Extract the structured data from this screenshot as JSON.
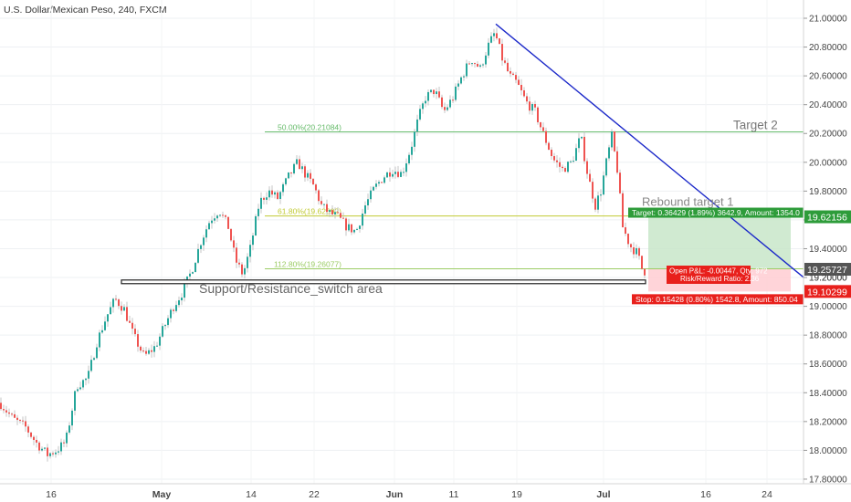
{
  "title": "U.S. Dollar/Mexican Peso, 240, FXCM",
  "colors": {
    "up": "#26a69a",
    "down": "#ef5350",
    "wick": "#9e9e9e",
    "trendline": "#1c29c9",
    "fib50": "#66bb6a",
    "fib618": "#c0ca33",
    "fib1128": "#9ccc65",
    "target_zone": "#c8e6c9",
    "stop_zone": "#ffcdd2",
    "target_label": "#2e9c3a",
    "stop_label": "#e8201c",
    "support_line": "#222222"
  },
  "chart_data": {
    "type": "candlestick",
    "x_ticks": [
      "16",
      "May",
      "14",
      "22",
      "Jun",
      "11",
      "19",
      "Jul",
      "16",
      "24"
    ],
    "y_ticks": [
      "17.80000",
      "18.00000",
      "18.20000",
      "18.40000",
      "18.60000",
      "18.80000",
      "19.00000",
      "19.20000",
      "19.40000",
      "19.60000",
      "19.80000",
      "20.00000",
      "20.20000",
      "20.40000",
      "20.60000",
      "20.80000",
      "21.00000"
    ],
    "ylim": [
      17.72,
      21.06
    ],
    "close_path": [
      [
        0,
        18.33
      ],
      [
        14,
        18.22
      ],
      [
        28,
        18.16
      ],
      [
        40,
        18.05
      ],
      [
        52,
        17.97
      ],
      [
        62,
        18.0
      ],
      [
        72,
        18.06
      ],
      [
        84,
        18.45
      ],
      [
        96,
        18.5
      ],
      [
        106,
        18.75
      ],
      [
        116,
        18.92
      ],
      [
        126,
        19.05
      ],
      [
        136,
        18.98
      ],
      [
        146,
        18.8
      ],
      [
        158,
        18.65
      ],
      [
        170,
        18.72
      ],
      [
        180,
        18.86
      ],
      [
        190,
        19.0
      ],
      [
        200,
        19.1
      ],
      [
        210,
        19.25
      ],
      [
        220,
        19.45
      ],
      [
        230,
        19.6
      ],
      [
        240,
        19.67
      ],
      [
        250,
        19.55
      ],
      [
        258,
        19.32
      ],
      [
        266,
        19.22
      ],
      [
        274,
        19.4
      ],
      [
        284,
        19.72
      ],
      [
        294,
        19.8
      ],
      [
        304,
        19.75
      ],
      [
        316,
        19.9
      ],
      [
        326,
        20.0
      ],
      [
        334,
        19.92
      ],
      [
        344,
        19.83
      ],
      [
        352,
        19.7
      ],
      [
        360,
        19.65
      ],
      [
        370,
        19.62
      ],
      [
        380,
        19.55
      ],
      [
        390,
        19.52
      ],
      [
        400,
        19.7
      ],
      [
        410,
        19.82
      ],
      [
        420,
        19.9
      ],
      [
        430,
        19.95
      ],
      [
        440,
        19.92
      ],
      [
        450,
        20.1
      ],
      [
        458,
        20.3
      ],
      [
        466,
        20.45
      ],
      [
        476,
        20.5
      ],
      [
        486,
        20.35
      ],
      [
        496,
        20.45
      ],
      [
        506,
        20.6
      ],
      [
        516,
        20.72
      ],
      [
        526,
        20.65
      ],
      [
        534,
        20.8
      ],
      [
        542,
        20.9
      ],
      [
        550,
        20.72
      ],
      [
        558,
        20.6
      ],
      [
        566,
        20.55
      ],
      [
        576,
        20.42
      ],
      [
        586,
        20.35
      ],
      [
        596,
        20.18
      ],
      [
        606,
        20.02
      ],
      [
        616,
        19.95
      ],
      [
        626,
        20.0
      ],
      [
        636,
        20.18
      ],
      [
        644,
        19.9
      ],
      [
        652,
        19.7
      ],
      [
        658,
        19.8
      ],
      [
        664,
        20.0
      ],
      [
        670,
        20.18
      ],
      [
        676,
        19.95
      ],
      [
        682,
        19.55
      ],
      [
        690,
        19.42
      ],
      [
        698,
        19.37
      ],
      [
        704,
        19.24
      ],
      [
        710,
        19.25
      ]
    ],
    "trendline": [
      [
        543,
        20.96
      ],
      [
        932,
        18.93
      ]
    ],
    "fib_levels": [
      {
        "label": "50.00%(20.21084)",
        "value": 20.21084
      },
      {
        "label": "61.80%(19.62692)",
        "value": 19.627
      },
      {
        "label": "112.80%(19.26077)",
        "value": 19.26077
      }
    ],
    "support_line": [
      [
        133,
        19.17
      ],
      [
        707,
        19.17
      ]
    ],
    "support_label": "Support/Resistance_switch area",
    "target_label": "Target 2",
    "rebound_label": "Rebound target 1",
    "position": {
      "entry": 19.25727,
      "target": 19.62156,
      "stop": 19.10299,
      "target_text": "Target: 0.36429 (1.89%) 3642.9, Amount: 1354.0",
      "pnl_text": "Open P&L: -0.00447, Qty: 972",
      "rr_text": "Risk/Reward Ratio: 2.36",
      "stop_text": "Stop: 0.15428 (0.80%) 1542.8, Amount: 850.04"
    },
    "price_labels": [
      {
        "text": "19.62156",
        "value": 19.62156,
        "kind": "target"
      },
      {
        "text": "19.25727",
        "value": 19.25727,
        "kind": "last"
      },
      {
        "text": "19.20000",
        "value": 19.2,
        "kind": "tick"
      },
      {
        "text": "19.10299",
        "value": 19.10299,
        "kind": "stop"
      }
    ]
  }
}
